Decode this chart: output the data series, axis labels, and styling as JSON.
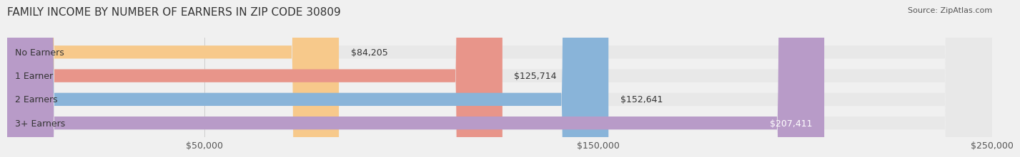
{
  "title": "FAMILY INCOME BY NUMBER OF EARNERS IN ZIP CODE 30809",
  "source": "Source: ZipAtlas.com",
  "categories": [
    "No Earners",
    "1 Earner",
    "2 Earners",
    "3+ Earners"
  ],
  "values": [
    84205,
    125714,
    152641,
    207411
  ],
  "bar_colors": [
    "#f7c98b",
    "#e8958a",
    "#89b4d9",
    "#b89bc8"
  ],
  "label_colors": [
    "#333333",
    "#333333",
    "#333333",
    "#ffffff"
  ],
  "value_labels": [
    "$84,205",
    "$125,714",
    "$152,641",
    "$207,411"
  ],
  "xlim": [
    0,
    250000
  ],
  "xticks": [
    50000,
    150000,
    250000
  ],
  "xtick_labels": [
    "$50,000",
    "$150,000",
    "$250,000"
  ],
  "background_color": "#f0f0f0",
  "bar_background_color": "#e8e8e8",
  "bar_height": 0.55,
  "title_fontsize": 11,
  "label_fontsize": 9,
  "value_fontsize": 9,
  "tick_fontsize": 9
}
